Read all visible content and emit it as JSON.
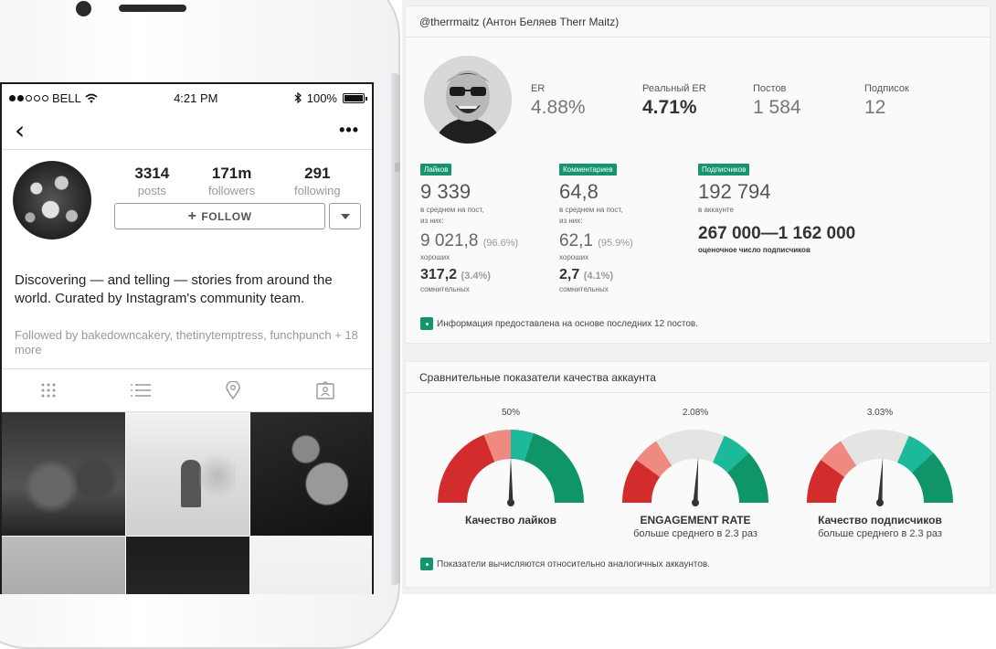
{
  "phone": {
    "status": {
      "carrier": "BELL",
      "time": "4:21 PM",
      "battery": "100%"
    },
    "nav": {
      "back_icon": "chevron-left-icon",
      "more_label": "•••"
    },
    "profile": {
      "stats": [
        {
          "value": "3314",
          "label": "posts"
        },
        {
          "value": "171m",
          "label": "followers"
        },
        {
          "value": "291",
          "label": "following"
        }
      ],
      "follow_label": "FOLLOW",
      "follow_plus": "+",
      "bio": "Discovering — and telling — stories from around the world. Curated by Instagram's community team.",
      "followed_by": "Followed by bakedowncakery, thetinytemptress, funchpunch + 18 more"
    },
    "tabs": [
      "grid-icon",
      "list-icon",
      "location-pin-icon",
      "tagged-icon"
    ]
  },
  "analytics": {
    "account_title": "@therrmaitz (Антон Беляев Therr Maitz)",
    "top_metrics": [
      {
        "label": "ER",
        "value": "4.88%",
        "bold": false
      },
      {
        "label": "Реальный ER",
        "value": "4.71%",
        "bold": true
      },
      {
        "label": "Постов",
        "value": "1 584",
        "bold": false
      },
      {
        "label": "Подписок",
        "value": "12",
        "bold": false
      }
    ],
    "likes": {
      "tag": "Лайков",
      "value": "9 339",
      "note": "в среднем на пост,",
      "note2": "из них:",
      "good_value": "9 021,8",
      "good_pct": "(96.6%)",
      "good_label": "хороших",
      "doubt_value": "317,2",
      "doubt_pct": "(3.4%)",
      "doubt_label": "сомнительных"
    },
    "comments": {
      "tag": "Комментариев",
      "value": "64,8",
      "note": "в среднем на пост,",
      "note2": "из них:",
      "good_value": "62,1",
      "good_pct": "(95.9%)",
      "good_label": "хороших",
      "doubt_value": "2,7",
      "doubt_pct": "(4.1%)",
      "doubt_label": "сомнительных"
    },
    "followers": {
      "tag": "Подписчиков",
      "value": "192 794",
      "note": "в аккаунте",
      "range": "267 000—1 162 000",
      "range_note": "оценочное число подписчиков"
    },
    "info_note": "Информация предоставлена на основе последних 12 постов.",
    "quality_title": "Сравнительные показатели качества аккаунта",
    "gauges": [
      {
        "pct": "50%",
        "value": 0.5,
        "name": "Качество лайков",
        "sub": ""
      },
      {
        "pct": "2.08%",
        "value": 0.52,
        "name": "ENGAGEMENT RATE",
        "sub": "больше среднего в 2.3 раз"
      },
      {
        "pct": "3.03%",
        "value": 0.52,
        "name": "Качество подписчиков",
        "sub": "больше среднего в 2.3 раз"
      }
    ],
    "footer_note": "Показатели вычисляются относительно аналогичных аккаунтов.",
    "colors": {
      "accent": "#13956e",
      "red": "#d32c2c",
      "salmon": "#ef8a80",
      "light": "#e2e5e2",
      "teal": "#1cb99a",
      "green": "#0f9668"
    }
  }
}
